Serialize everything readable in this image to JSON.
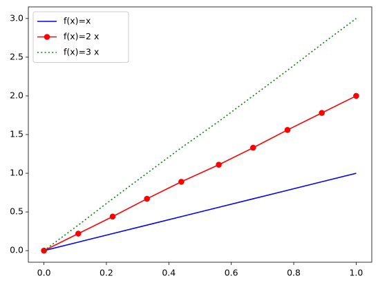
{
  "chart_data": {
    "type": "line",
    "x": [
      0,
      0.11,
      0.22,
      0.33,
      0.44,
      0.56,
      0.67,
      0.78,
      0.89,
      1
    ],
    "series": [
      {
        "name": "f(x)=x",
        "color": "#0000ff",
        "linestyle": "solid",
        "marker": false,
        "values": [
          0,
          0.11,
          0.22,
          0.33,
          0.44,
          0.56,
          0.67,
          0.78,
          0.89,
          1
        ]
      },
      {
        "name": "f(x)=2 x",
        "color": "#ff0000",
        "linestyle": "solid",
        "marker": true,
        "values": [
          0,
          0.22,
          0.44,
          0.67,
          0.89,
          1.11,
          1.33,
          1.56,
          1.78,
          2
        ]
      },
      {
        "name": "f(x)=3 x",
        "color": "#008000",
        "linestyle": "dotted",
        "marker": false,
        "values": [
          0,
          0.33,
          0.67,
          1,
          1.33,
          1.67,
          2,
          2.33,
          2.67,
          3
        ]
      }
    ],
    "xlim": [
      -0.05,
      1.05
    ],
    "xticks": [
      {
        "value": 0,
        "label": "0.0"
      },
      0.2,
      0.4,
      0.6,
      0.8,
      {
        "value": 1,
        "label": "1.0"
      }
    ],
    "ylim": [
      -0.15,
      3.15
    ],
    "yticks": [
      {
        "value": 0,
        "label": "0.0"
      },
      0.5,
      {
        "value": 1,
        "label": "1.0"
      },
      1.5,
      {
        "value": 2,
        "label": "2.0"
      },
      2.5,
      {
        "value": 3,
        "label": "3.0"
      }
    ],
    "grid": false,
    "legend": "upper left"
  }
}
